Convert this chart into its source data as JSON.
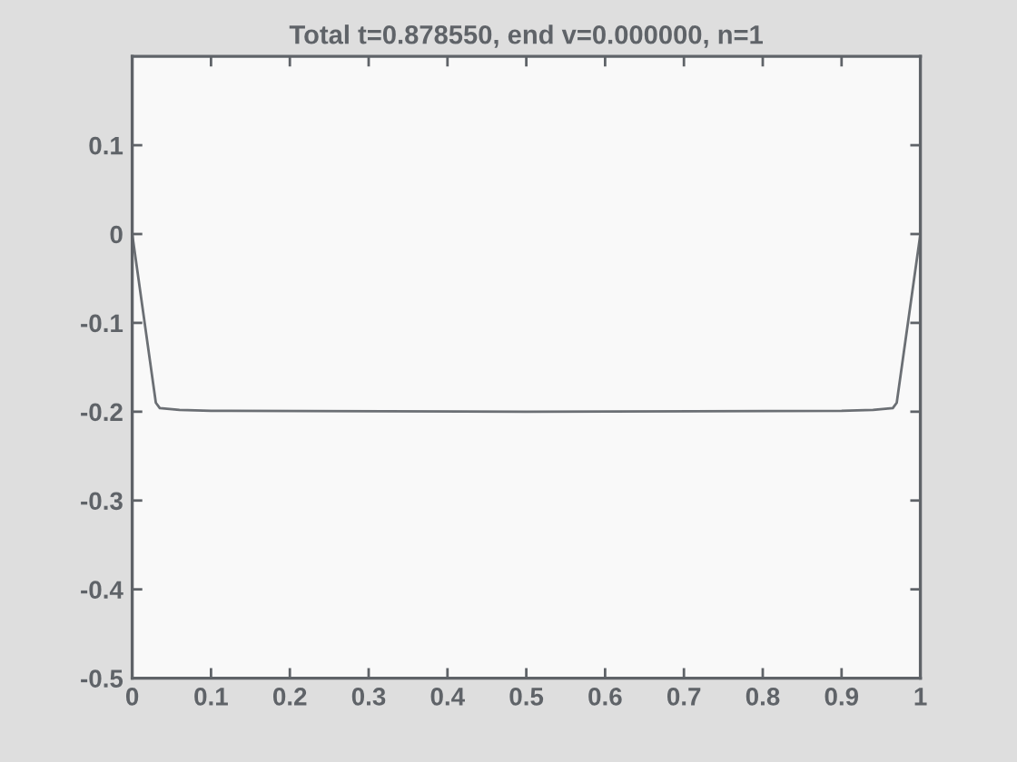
{
  "chart_data": {
    "type": "line",
    "title": "Total t=0.878550, end v=0.000000, n=1",
    "x": [
      0,
      0.03,
      0.035,
      0.06,
      0.1,
      0.5,
      0.9,
      0.94,
      0.965,
      0.97,
      1
    ],
    "values": [
      0,
      -0.19,
      -0.196,
      -0.198,
      -0.199,
      -0.2,
      -0.199,
      -0.198,
      -0.196,
      -0.19,
      0
    ],
    "color": "#6b6f74",
    "xlim": [
      0,
      1
    ],
    "ylim": [
      -0.5,
      0.2
    ],
    "xticks": [
      0,
      0.1,
      0.2,
      0.3,
      0.4,
      0.5,
      0.6,
      0.7,
      0.8,
      0.9,
      1
    ],
    "yticks": [
      -0.5,
      -0.4,
      -0.3,
      -0.2,
      -0.1,
      0,
      0.1
    ]
  }
}
